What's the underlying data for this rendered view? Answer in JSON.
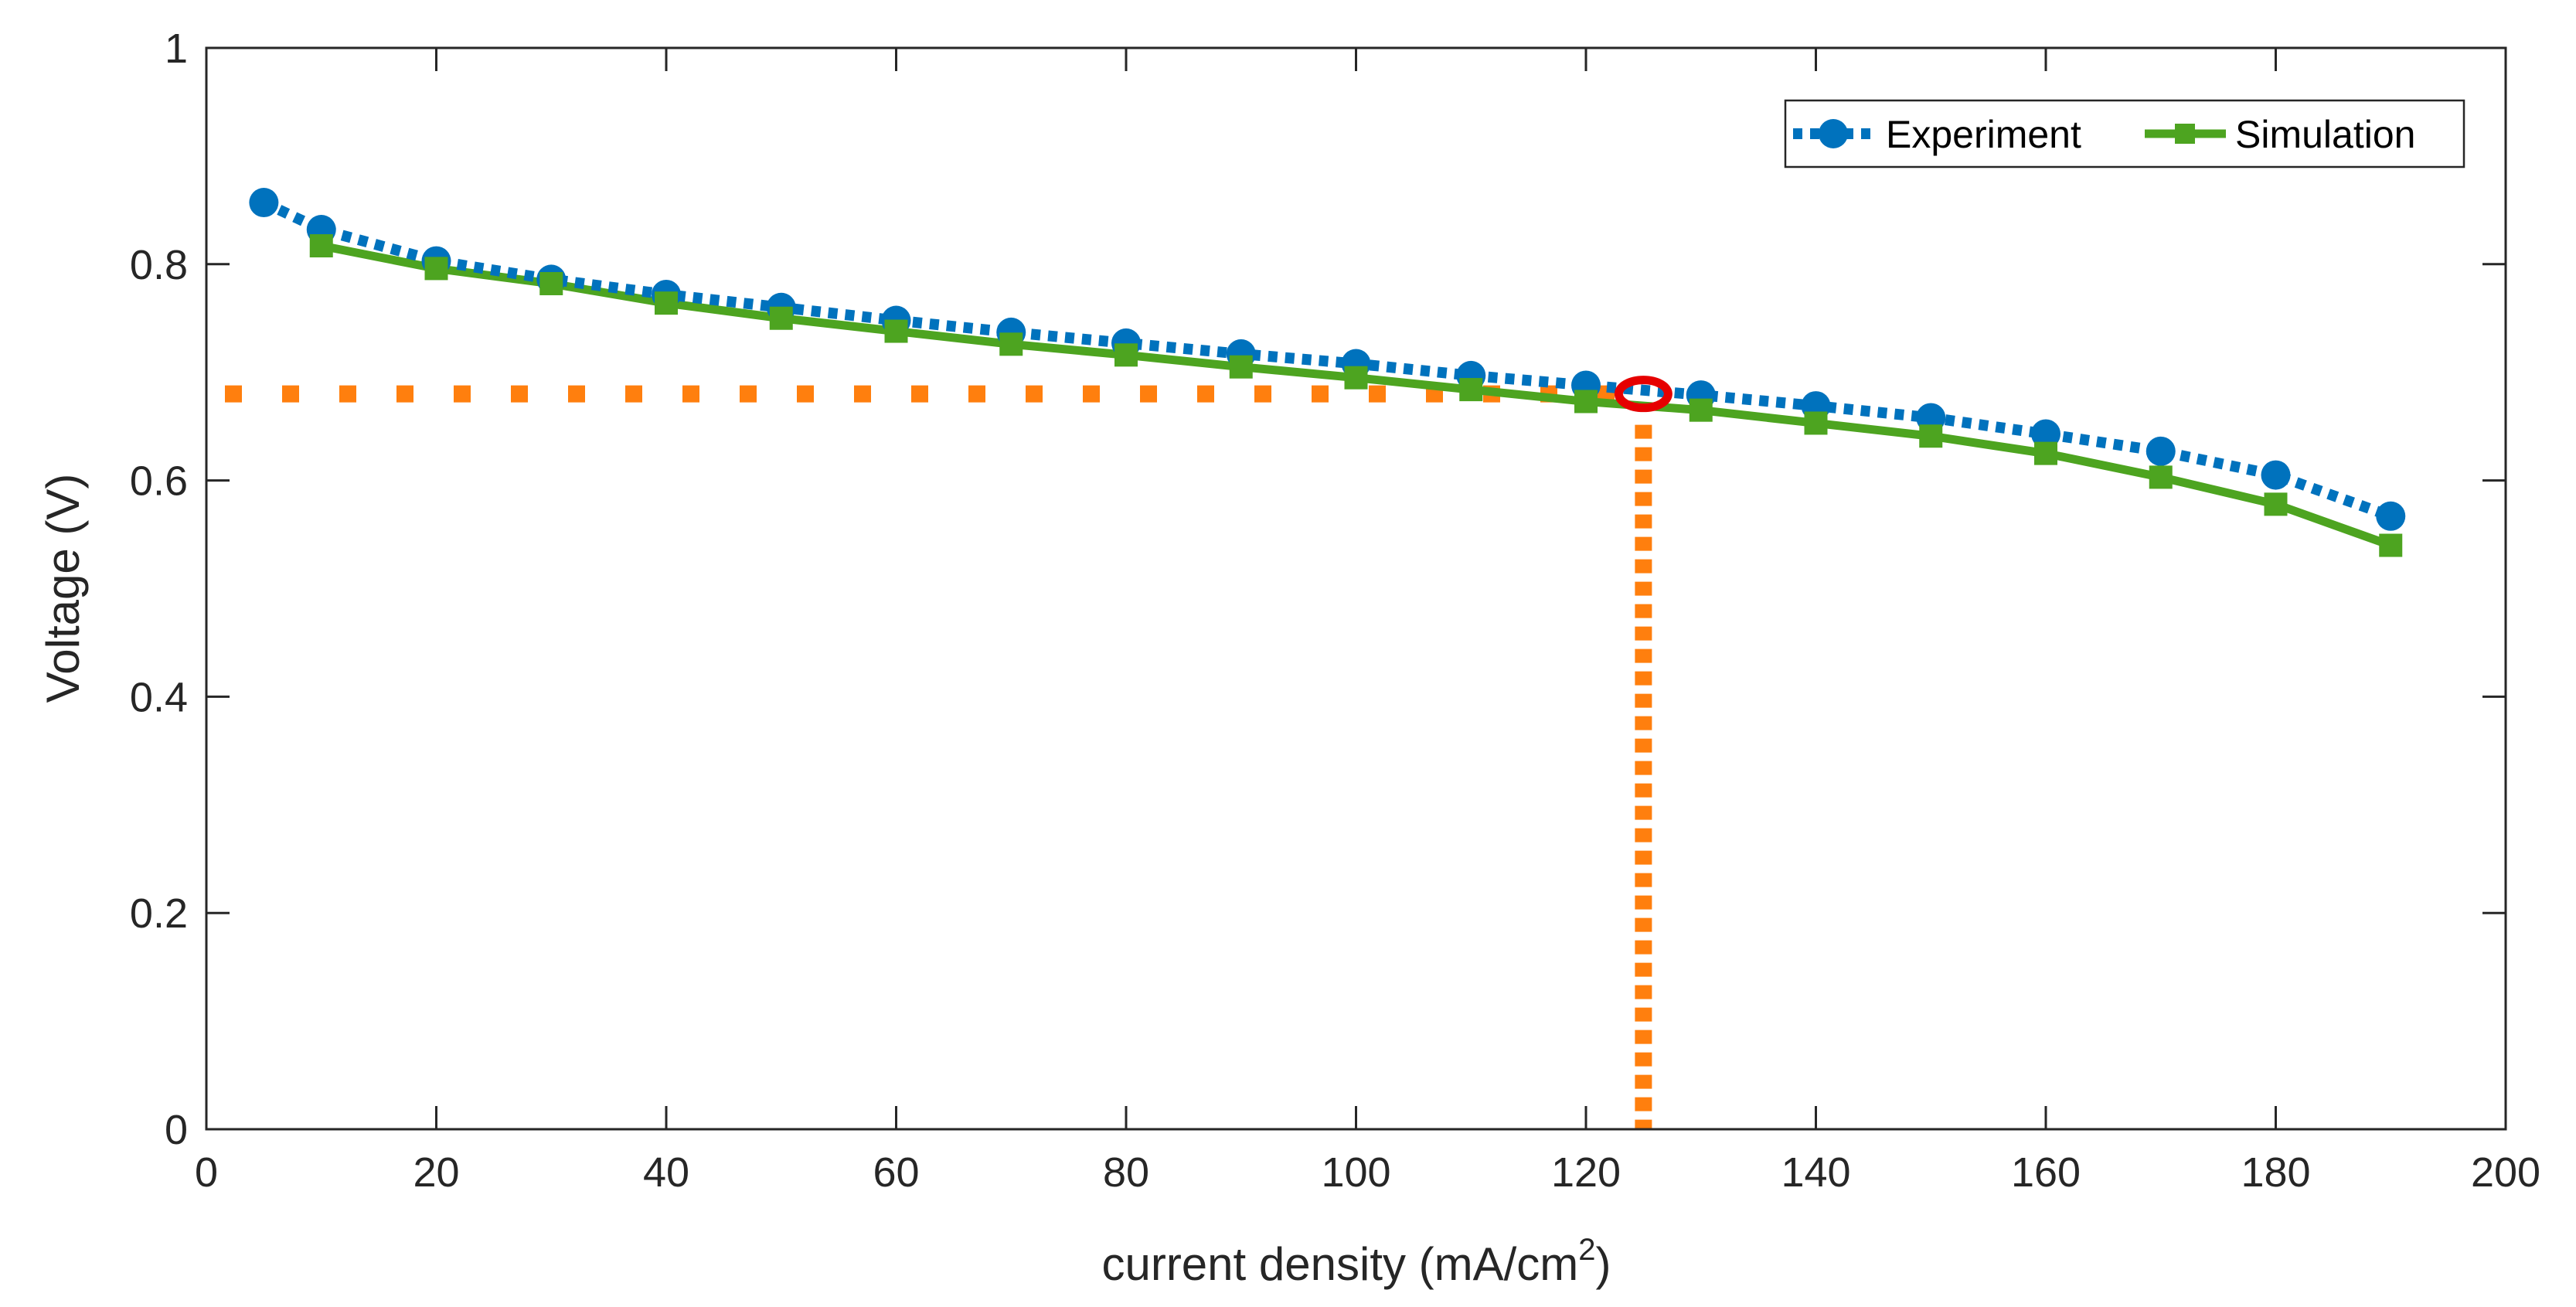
{
  "chart_data": {
    "type": "line",
    "title": "",
    "xlabel": "current density (mA/cm",
    "xlabel_sup": "2",
    "xlabel_close": ")",
    "ylabel": "Voltage (V)",
    "xlim": [
      0,
      200
    ],
    "ylim": [
      0,
      1
    ],
    "xticks": [
      0,
      20,
      40,
      60,
      80,
      100,
      120,
      140,
      160,
      180,
      200
    ],
    "yticks": [
      0,
      0.2,
      0.4,
      0.6,
      0.8,
      1
    ],
    "ytick_labels": [
      "0",
      "0.2",
      "0.4",
      "0.6",
      "0.8",
      "1"
    ],
    "grid": false,
    "legend_position": "top-right",
    "series": [
      {
        "name": "Experiment",
        "style": "dotted",
        "marker": "circle",
        "color": "#0072BD",
        "x": [
          5,
          10,
          20,
          30,
          40,
          50,
          60,
          70,
          80,
          90,
          100,
          110,
          120,
          130,
          140,
          150,
          160,
          170,
          180,
          190
        ],
        "y": [
          0.857,
          0.832,
          0.803,
          0.786,
          0.772,
          0.76,
          0.748,
          0.737,
          0.727,
          0.717,
          0.708,
          0.697,
          0.688,
          0.679,
          0.669,
          0.658,
          0.643,
          0.627,
          0.605,
          0.567
        ]
      },
      {
        "name": "Simulation",
        "style": "solid",
        "marker": "square",
        "color": "#4DA420",
        "x": [
          10,
          20,
          30,
          40,
          50,
          60,
          70,
          80,
          90,
          100,
          110,
          120,
          130,
          140,
          150,
          160,
          170,
          180,
          190
        ],
        "y": [
          0.817,
          0.796,
          0.782,
          0.764,
          0.75,
          0.738,
          0.726,
          0.716,
          0.705,
          0.695,
          0.684,
          0.673,
          0.665,
          0.653,
          0.641,
          0.625,
          0.603,
          0.578,
          0.54
        ]
      }
    ],
    "annotation": {
      "operating_point": {
        "x": 125,
        "y": 0.68
      },
      "guide_color": "#FF7F0E",
      "marker_color": "#E60000"
    }
  }
}
